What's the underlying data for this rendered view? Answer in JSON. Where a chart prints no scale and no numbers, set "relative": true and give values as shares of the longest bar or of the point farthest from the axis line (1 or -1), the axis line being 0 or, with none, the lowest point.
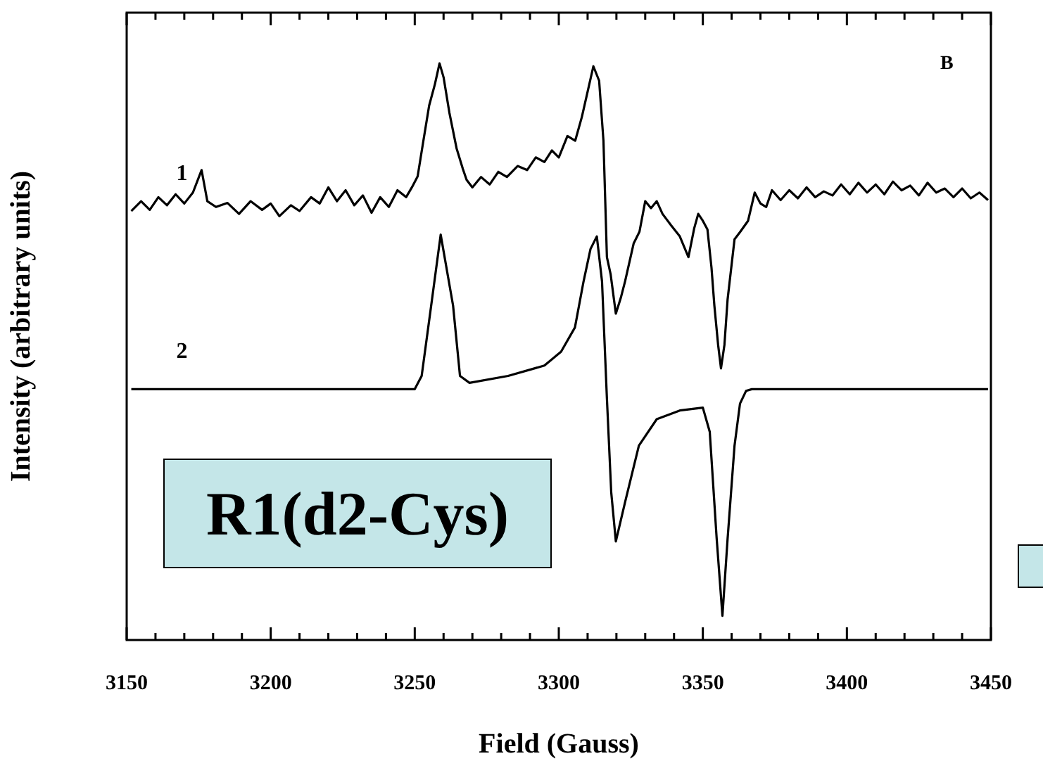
{
  "chart_data": {
    "type": "line",
    "xlabel": "Field (Gauss)",
    "ylabel": "Intensity (arbitrary units)",
    "relative": true,
    "grid": false,
    "legend": false,
    "marker": "none",
    "line_style": "solid",
    "xlim": [
      3150,
      3450
    ],
    "xticks": [
      3150,
      {
        "value": 3160,
        "label": null
      },
      {
        "value": 3170,
        "label": null
      },
      {
        "value": 3180,
        "label": null
      },
      {
        "value": 3190,
        "label": null
      },
      3200,
      {
        "value": 3210,
        "label": null
      },
      {
        "value": 3220,
        "label": null
      },
      {
        "value": 3230,
        "label": null
      },
      {
        "value": 3240,
        "label": null
      },
      3250,
      {
        "value": 3260,
        "label": null
      },
      {
        "value": 3270,
        "label": null
      },
      {
        "value": 3280,
        "label": null
      },
      {
        "value": 3290,
        "label": null
      },
      3300,
      {
        "value": 3310,
        "label": null
      },
      {
        "value": 3320,
        "label": null
      },
      {
        "value": 3330,
        "label": null
      },
      {
        "value": 3340,
        "label": null
      },
      3350,
      {
        "value": 3360,
        "label": null
      },
      {
        "value": 3370,
        "label": null
      },
      {
        "value": 3380,
        "label": null
      },
      {
        "value": 3390,
        "label": null
      },
      3400,
      {
        "value": 3410,
        "label": null
      },
      {
        "value": 3420,
        "label": null
      },
      {
        "value": 3430,
        "label": null
      },
      {
        "value": 3440,
        "label": null
      },
      3450
    ],
    "annotations": [
      "B",
      "R1(d2-Cys)"
    ],
    "series": [
      {
        "name": "1",
        "color": "#000000",
        "x": [
          3151.6,
          3155,
          3158,
          3161,
          3164,
          3167,
          3170,
          3173,
          3176,
          3178,
          3181,
          3185,
          3189,
          3193,
          3197,
          3200,
          3203,
          3207,
          3210,
          3214,
          3217,
          3220,
          3223,
          3226,
          3229,
          3232,
          3235,
          3238,
          3241,
          3244,
          3247,
          3249,
          3251,
          3253,
          3255,
          3257,
          3258.6,
          3260,
          3262,
          3264.5,
          3266.7,
          3268,
          3270,
          3273,
          3276,
          3279,
          3282,
          3285.7,
          3289,
          3292,
          3295,
          3297.6,
          3300,
          3303,
          3305.7,
          3308,
          3310,
          3312,
          3314,
          3315.5,
          3316.7,
          3318,
          3319.8,
          3321.5,
          3323,
          3326,
          3328,
          3330,
          3332,
          3334,
          3336,
          3339,
          3342,
          3345,
          3347,
          3348.4,
          3350,
          3351.6,
          3353,
          3354,
          3355.3,
          3356.3,
          3357.5,
          3358.6,
          3361,
          3363,
          3365.7,
          3368,
          3370,
          3372,
          3374,
          3377,
          3380,
          3383,
          3386,
          3389,
          3392,
          3395,
          3398,
          3401,
          3404,
          3407,
          3410,
          3413,
          3416,
          3419,
          3422,
          3425,
          3428,
          3431,
          3434,
          3437,
          3440,
          3443,
          3446,
          3449
        ],
        "values": [
          0.744,
          0.761,
          0.746,
          0.768,
          0.754,
          0.773,
          0.757,
          0.776,
          0.815,
          0.761,
          0.751,
          0.758,
          0.739,
          0.761,
          0.746,
          0.757,
          0.735,
          0.754,
          0.744,
          0.768,
          0.757,
          0.785,
          0.761,
          0.78,
          0.754,
          0.771,
          0.741,
          0.768,
          0.751,
          0.78,
          0.768,
          0.785,
          0.804,
          0.866,
          0.927,
          0.964,
          1,
          0.976,
          0.915,
          0.853,
          0.817,
          0.798,
          0.785,
          0.803,
          0.79,
          0.812,
          0.803,
          0.822,
          0.815,
          0.837,
          0.829,
          0.849,
          0.837,
          0.874,
          0.866,
          0.907,
          0.951,
          0.995,
          0.97,
          0.866,
          0.664,
          0.634,
          0.566,
          0.593,
          0.622,
          0.688,
          0.708,
          0.761,
          0.749,
          0.761,
          0.739,
          0.719,
          0.7,
          0.664,
          0.714,
          0.739,
          0.727,
          0.712,
          0.646,
          0.58,
          0.512,
          0.471,
          0.512,
          0.591,
          0.695,
          0.708,
          0.727,
          0.776,
          0.757,
          0.751,
          0.78,
          0.763,
          0.78,
          0.766,
          0.785,
          0.768,
          0.778,
          0.771,
          0.79,
          0.773,
          0.793,
          0.776,
          0.79,
          0.773,
          0.795,
          0.78,
          0.788,
          0.771,
          0.793,
          0.776,
          0.783,
          0.768,
          0.783,
          0.766,
          0.776,
          0.763
        ]
      },
      {
        "name": "2",
        "color": "#000000",
        "x": [
          3151.6,
          3250,
          3252.4,
          3255.7,
          3259,
          3263.3,
          3265.7,
          3269,
          3282.4,
          3295,
          3300.8,
          3305.6,
          3308.6,
          3311,
          3313.2,
          3315,
          3316.7,
          3318.2,
          3319.8,
          3323,
          3327.8,
          3334,
          3342,
          3350,
          3352.4,
          3354.8,
          3356.8,
          3358.6,
          3361,
          3362.9,
          3365,
          3367,
          3449
        ],
        "values": [
          0.435,
          0.435,
          0.458,
          0.58,
          0.703,
          0.58,
          0.458,
          0.446,
          0.458,
          0.476,
          0.5,
          0.542,
          0.622,
          0.678,
          0.7,
          0.622,
          0.419,
          0.256,
          0.171,
          0.239,
          0.337,
          0.383,
          0.398,
          0.403,
          0.361,
          0.176,
          0.042,
          0.176,
          0.337,
          0.41,
          0.432,
          0.435,
          0.435
        ]
      }
    ]
  }
}
